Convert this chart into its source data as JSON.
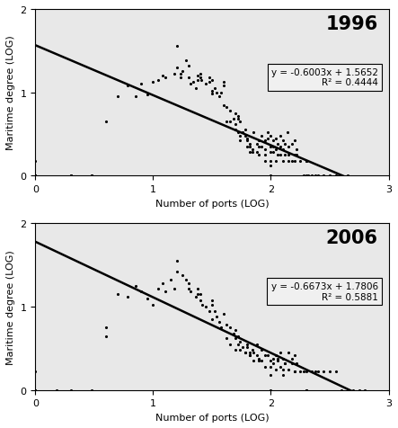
{
  "panels": [
    {
      "year": "1996",
      "slope": -0.6003,
      "intercept": 1.5652,
      "equation": "y = -0.6003x + 1.5652",
      "r2_label": "R² = 0.4444",
      "scatter_x": [
        0.0,
        0.0,
        0.0,
        0.3,
        0.48,
        0.6,
        0.7,
        0.78,
        0.85,
        0.9,
        0.95,
        1.0,
        1.04,
        1.08,
        1.1,
        1.18,
        1.2,
        1.23,
        1.25,
        1.28,
        1.3,
        1.32,
        1.34,
        1.36,
        1.38,
        1.4,
        1.41,
        1.45,
        1.48,
        1.5,
        1.52,
        1.54,
        1.56,
        1.58,
        1.6,
        1.62,
        1.65,
        1.68,
        1.7,
        1.72,
        1.74,
        1.76,
        1.78,
        1.8,
        1.82,
        1.84,
        1.85,
        1.88,
        1.9,
        1.92,
        1.95,
        1.97,
        2.0,
        2.02,
        2.04,
        2.06,
        2.08,
        2.1,
        2.12,
        2.14,
        2.15,
        2.18,
        2.2,
        2.22,
        2.25,
        2.28,
        2.3,
        2.32,
        2.35,
        2.38,
        2.4,
        2.45,
        2.5,
        2.55,
        2.6,
        2.65,
        0.0,
        0.0,
        0.3,
        0.48,
        1.2,
        1.23,
        1.3,
        1.38,
        1.4,
        1.48,
        1.5,
        1.5,
        1.6,
        1.6,
        1.62,
        1.65,
        1.7,
        1.7,
        1.72,
        1.72,
        1.74,
        1.74,
        1.78,
        1.8,
        1.8,
        1.82,
        1.82,
        1.84,
        1.88,
        1.9,
        1.9,
        1.92,
        1.95,
        1.95,
        1.95,
        1.97,
        2.0,
        2.0,
        2.0,
        2.0,
        2.0,
        2.02,
        2.02,
        2.04,
        2.04,
        2.06,
        2.08,
        2.08,
        2.1,
        2.1,
        2.12,
        2.15,
        2.15,
        2.18,
        2.2,
        2.2,
        2.22,
        2.3,
        2.3
      ],
      "scatter_y": [
        0.0,
        0.0,
        0.18,
        0.0,
        0.0,
        0.65,
        0.95,
        1.08,
        0.95,
        1.1,
        0.97,
        1.12,
        1.15,
        1.2,
        1.18,
        1.22,
        1.56,
        1.22,
        1.25,
        1.38,
        1.32,
        1.1,
        1.12,
        1.05,
        1.15,
        1.18,
        1.15,
        1.1,
        1.12,
        1.15,
        1.05,
        1.0,
        0.95,
        1.0,
        1.12,
        0.82,
        0.78,
        0.68,
        0.75,
        0.68,
        0.65,
        0.52,
        0.48,
        0.45,
        0.38,
        0.32,
        0.52,
        0.38,
        0.35,
        0.48,
        0.42,
        0.52,
        0.48,
        0.42,
        0.45,
        0.38,
        0.48,
        0.42,
        0.38,
        0.52,
        0.35,
        0.38,
        0.42,
        0.32,
        0.18,
        0.0,
        0.18,
        0.0,
        0.0,
        0.0,
        0.0,
        0.0,
        0.0,
        0.0,
        0.0,
        0.0,
        0.0,
        0.0,
        0.0,
        0.0,
        1.3,
        1.18,
        1.18,
        1.2,
        1.22,
        1.18,
        1.02,
        0.98,
        0.85,
        1.08,
        0.65,
        0.65,
        0.62,
        0.55,
        0.72,
        0.52,
        0.48,
        0.42,
        0.55,
        0.35,
        0.42,
        0.35,
        0.28,
        0.28,
        0.28,
        0.42,
        0.25,
        0.35,
        0.32,
        0.25,
        0.18,
        0.45,
        0.35,
        0.28,
        0.18,
        0.12,
        0.0,
        0.35,
        0.28,
        0.18,
        0.32,
        0.25,
        0.35,
        0.25,
        0.18,
        0.32,
        0.25,
        0.18,
        0.25,
        0.18,
        0.25,
        0.18,
        0.25,
        0.18,
        0.0
      ]
    },
    {
      "year": "2006",
      "slope": -0.6673,
      "intercept": 1.7806,
      "equation": "y = -0.6673x + 1.7806",
      "r2_label": "R² = 0.5881",
      "scatter_x": [
        0.0,
        0.0,
        0.0,
        0.18,
        0.3,
        0.48,
        0.6,
        0.7,
        0.78,
        0.85,
        0.9,
        0.95,
        1.0,
        1.04,
        1.08,
        1.1,
        1.15,
        1.18,
        1.2,
        1.25,
        1.28,
        1.3,
        1.32,
        1.36,
        1.38,
        1.4,
        1.42,
        1.45,
        1.48,
        1.5,
        1.52,
        1.54,
        1.56,
        1.58,
        1.6,
        1.62,
        1.65,
        1.68,
        1.7,
        1.72,
        1.74,
        1.76,
        1.78,
        1.8,
        1.82,
        1.84,
        1.85,
        1.88,
        1.9,
        1.92,
        1.95,
        1.97,
        2.0,
        2.02,
        2.04,
        2.06,
        2.08,
        2.1,
        2.12,
        2.15,
        2.18,
        2.2,
        2.22,
        2.25,
        2.28,
        2.3,
        2.35,
        2.38,
        2.4,
        2.45,
        2.5,
        2.55,
        2.6,
        2.65,
        2.7,
        2.75,
        2.8,
        0.0,
        0.6,
        1.2,
        1.3,
        1.38,
        1.4,
        1.5,
        1.5,
        1.62,
        1.65,
        1.7,
        1.7,
        1.72,
        1.74,
        1.78,
        1.8,
        1.82,
        1.82,
        1.85,
        1.88,
        1.9,
        1.92,
        1.95,
        2.0,
        2.0,
        2.0,
        2.02,
        2.04,
        2.06,
        2.08,
        2.1,
        2.1,
        2.12,
        2.15,
        2.18,
        2.2,
        2.2,
        2.3,
        2.3
      ],
      "scatter_y": [
        0.0,
        0.0,
        0.22,
        0.0,
        0.0,
        0.0,
        0.65,
        1.15,
        1.12,
        1.25,
        1.18,
        1.1,
        1.02,
        1.22,
        1.28,
        1.18,
        1.32,
        1.22,
        1.55,
        1.38,
        1.32,
        1.28,
        1.18,
        1.12,
        1.22,
        1.08,
        1.02,
        1.0,
        0.95,
        1.08,
        0.95,
        0.88,
        0.82,
        0.75,
        0.92,
        0.78,
        0.75,
        0.68,
        0.72,
        0.65,
        0.58,
        0.52,
        0.45,
        0.55,
        0.42,
        0.48,
        0.35,
        0.55,
        0.35,
        0.48,
        0.42,
        0.42,
        0.35,
        0.38,
        0.42,
        0.38,
        0.45,
        0.38,
        0.32,
        0.45,
        0.38,
        0.42,
        0.32,
        0.22,
        0.22,
        0.22,
        0.22,
        0.22,
        0.22,
        0.22,
        0.22,
        0.22,
        0.0,
        0.0,
        0.0,
        0.0,
        0.0,
        0.0,
        0.75,
        1.42,
        1.22,
        1.15,
        1.15,
        0.85,
        1.02,
        0.62,
        0.55,
        0.48,
        0.62,
        0.55,
        0.48,
        0.45,
        0.52,
        0.45,
        0.42,
        0.45,
        0.42,
        0.38,
        0.35,
        0.28,
        0.18,
        0.0,
        0.28,
        0.32,
        0.25,
        0.35,
        0.28,
        0.18,
        0.25,
        0.32,
        0.25,
        0.32,
        0.22,
        0.22,
        0.0,
        0.0
      ]
    }
  ],
  "xlabel": "Number of ports (LOG)",
  "ylabel": "Maritime degree (LOG)",
  "xlim": [
    0,
    3
  ],
  "ylim": [
    0,
    2
  ],
  "xticks": [
    0,
    1,
    2,
    3
  ],
  "yticks": [
    0,
    1,
    2
  ],
  "scatter_color": "#000000",
  "scatter_size": 5.0,
  "line_color": "#000000",
  "line_width": 1.8,
  "box_facecolor": "#f0f0f0",
  "box_edgecolor": "#000000",
  "background_color": "#ffffff",
  "panel_bg": "#e8e8e8"
}
